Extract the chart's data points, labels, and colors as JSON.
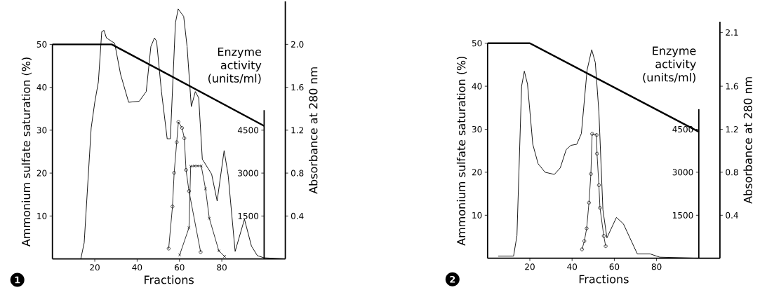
{
  "chart_data": [
    {
      "type": "line",
      "xlabel": "Fractions",
      "ylabel": "Ammonium sulfate saturation (%)",
      "y2label": "Enzyme activity (units/ml)",
      "y3label": "Absorbance at 280 nm",
      "xlim": [
        0,
        110
      ],
      "xticks": [
        20,
        40,
        60,
        80
      ],
      "ylim": [
        0,
        50
      ],
      "yticks": [
        10,
        20,
        30,
        40,
        50
      ],
      "y2lim": [
        0,
        5200
      ],
      "y2ticks": [
        1500,
        3000,
        4500
      ],
      "y3lim": [
        0,
        2.4
      ],
      "y3ticks": [
        0.4,
        0.8,
        1.2,
        1.6,
        {
          "value": 2,
          "label": "2.0"
        }
      ],
      "annotations": [
        "1"
      ],
      "series": [
        {
          "color": "#000000",
          "axis": "y",
          "x": [
            0,
            28,
            100
          ],
          "values": [
            50,
            50,
            31
          ]
        },
        {
          "color": "#000000",
          "axis": "y3",
          "x": [
            13.4,
            15.0,
            18.3,
            20.0,
            21.7,
            23.3,
            24.4,
            25.5,
            29.4,
            32.2,
            36.0,
            41.0,
            44.3,
            46.5,
            48.2,
            49.2,
            51.5,
            54.2,
            55.7,
            58.1,
            59.4,
            62.0,
            63.6,
            65.6,
            67.5,
            69.1,
            70.8,
            75.2,
            77.8,
            81.1,
            83.0,
            86.3,
            90.7,
            94.0,
            96.8,
            100,
            110
          ],
          "values": [
            0,
            0.15,
            1.22,
            1.46,
            1.65,
            2.12,
            2.13,
            2.06,
            2.01,
            1.72,
            1.46,
            1.47,
            1.56,
            1.98,
            2.06,
            2.03,
            1.56,
            1.12,
            1.12,
            2.2,
            2.33,
            2.26,
            1.98,
            1.42,
            1.56,
            1.5,
            0.93,
            0.79,
            0.54,
            1.01,
            0.78,
            0.07,
            0.37,
            0.12,
            0.03,
            0.01,
            0
          ]
        },
        {
          "color": "#000000",
          "axis": "y2",
          "marker": "circle",
          "x": [
            54.9,
            56.7,
            57.5,
            58.7,
            59.5,
            61.2,
            62.3,
            63.1,
            64.5,
            70.0
          ],
          "values": [
            360,
            1830,
            3010,
            4080,
            4790,
            4580,
            4220,
            3110,
            2370,
            240
          ]
        },
        {
          "color": "#000000",
          "axis": "y2",
          "marker": "cross",
          "x": [
            60.1,
            64.5,
            65.3,
            67.0,
            68.6,
            70.3,
            72.3,
            74.1,
            78.6,
            81.3
          ],
          "values": [
            140,
            1090,
            3240,
            3250,
            3250,
            3250,
            2450,
            1420,
            280,
            90
          ]
        }
      ]
    },
    {
      "type": "line",
      "xlabel": "Fractions",
      "ylabel": "Ammonium sulfate saturation (%)",
      "y2label": "Enzyme activity (units/ml)",
      "y3label": "Absorbance at 280 nm",
      "xlim": [
        0,
        110
      ],
      "xticks": [
        20,
        40,
        60,
        80
      ],
      "ylim": [
        0,
        50
      ],
      "yticks": [
        10,
        20,
        30,
        40,
        50
      ],
      "y2lim": [
        0,
        5200
      ],
      "y2ticks": [
        1500,
        3000,
        4500
      ],
      "y3lim": [
        0,
        2.2
      ],
      "y3ticks": [
        0.4,
        0.8,
        1.2,
        1.6,
        2.1
      ],
      "annotations": [
        "2"
      ],
      "series": [
        {
          "color": "#000000",
          "axis": "y",
          "x": [
            0,
            20,
            100
          ],
          "values": [
            50,
            50,
            29.4
          ]
        },
        {
          "color": "#000000",
          "axis": "y3",
          "x": [
            5.0,
            12.3,
            13.9,
            16.1,
            17.4,
            18.9,
            21.4,
            23.9,
            27.2,
            31.6,
            34.4,
            37.2,
            39.4,
            42.2,
            44.4,
            47.1,
            49.3,
            51.0,
            52.7,
            54.6,
            56.5,
            61.0,
            64.3,
            70.9,
            77.0,
            81.5,
            100,
            110
          ],
          "values": [
            0.02,
            0.02,
            0.21,
            1.6,
            1.74,
            1.62,
            1.06,
            0.88,
            0.8,
            0.78,
            0.84,
            1.01,
            1.05,
            1.06,
            1.16,
            1.75,
            1.94,
            1.82,
            1.36,
            0.45,
            0.19,
            0.38,
            0.32,
            0.04,
            0.04,
            0.01,
            0,
            0
          ]
        },
        {
          "color": "#000000",
          "axis": "y2",
          "marker": "circle",
          "x": [
            44.7,
            45.8,
            46.9,
            48.0,
            48.9,
            49.5,
            51.6,
            51.8,
            52.7,
            53.2,
            55.0,
            55.9
          ],
          "values": [
            310,
            600,
            1040,
            1940,
            2940,
            4340,
            4300,
            3650,
            2550,
            1760,
            780,
            420
          ]
        }
      ]
    }
  ]
}
